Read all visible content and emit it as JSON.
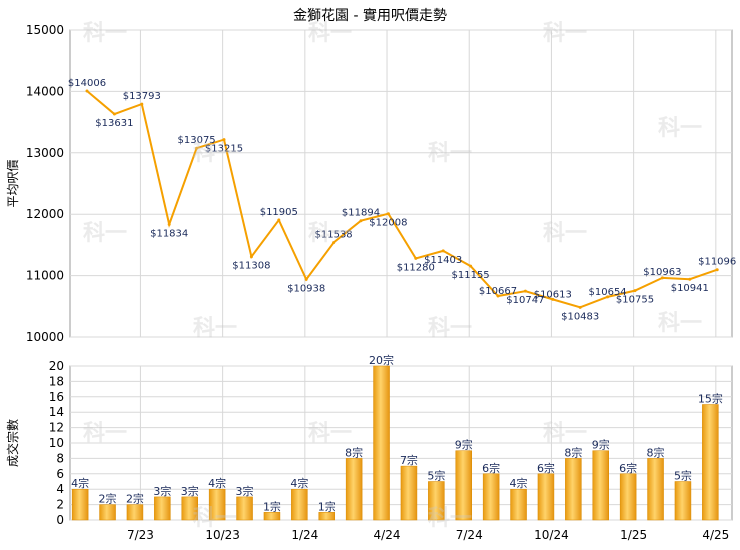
{
  "title": "金獅花園 - 實用呎價走勢",
  "watermark": "科一",
  "chart_data": [
    {
      "type": "line",
      "title": "金獅花園 - 實用呎價走勢",
      "ylabel": "平均呎價",
      "ylim": [
        10000,
        15000
      ],
      "yticks": [
        10000,
        11000,
        12000,
        13000,
        14000,
        15000
      ],
      "xticks": [
        "7/23",
        "10/23",
        "1/24",
        "4/24",
        "7/24",
        "10/24",
        "1/25",
        "4/25"
      ],
      "color": "#f5a000",
      "labels": [
        "$14006",
        "$13631",
        "$13793",
        "$11834",
        "$13075",
        "$13215",
        "$11308",
        "$11905",
        "$10938",
        "$11538",
        "$11894",
        "$12008",
        "$11280",
        "$11403",
        "$11155",
        "$10667",
        "$10747",
        "$10613",
        "$10483",
        "$10654",
        "$10755",
        "$10963",
        "$10941",
        "$11096"
      ],
      "values": [
        14006,
        13631,
        13793,
        11834,
        13075,
        13215,
        11308,
        11905,
        10938,
        11538,
        11894,
        12008,
        11280,
        11403,
        11155,
        10667,
        10747,
        10613,
        10483,
        10654,
        10755,
        10963,
        10941,
        11096
      ]
    },
    {
      "type": "bar",
      "ylabel": "成交宗數",
      "ylim": [
        0,
        20
      ],
      "yticks": [
        0,
        2,
        4,
        6,
        8,
        10,
        12,
        14,
        16,
        18,
        20
      ],
      "xticks": [
        "7/23",
        "10/23",
        "1/24",
        "4/24",
        "7/24",
        "10/24",
        "1/25",
        "4/25"
      ],
      "color": "#f0a820",
      "labels": [
        "4宗",
        "2宗",
        "2宗",
        "3宗",
        "3宗",
        "4宗",
        "3宗",
        "1宗",
        "4宗",
        "1宗",
        "8宗",
        "20宗",
        "7宗",
        "5宗",
        "9宗",
        "6宗",
        "4宗",
        "6宗",
        "8宗",
        "9宗",
        "6宗",
        "8宗",
        "5宗",
        "15宗"
      ],
      "values": [
        4,
        2,
        2,
        3,
        3,
        4,
        3,
        1,
        4,
        1,
        8,
        20,
        7,
        5,
        9,
        6,
        4,
        6,
        8,
        9,
        6,
        8,
        5,
        15
      ]
    }
  ]
}
